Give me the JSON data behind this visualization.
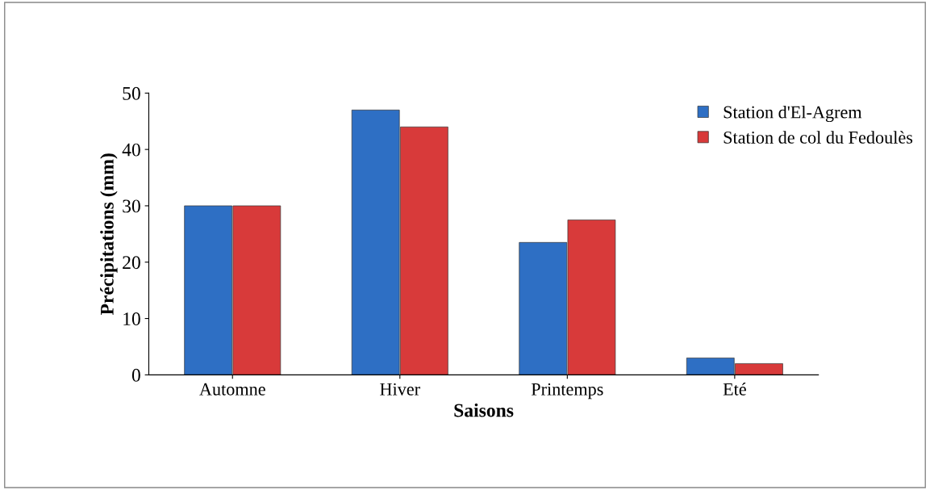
{
  "chart_data": {
    "type": "bar",
    "xlabel": "Saisons",
    "ylabel": "Précipitations (mm)",
    "categories": [
      "Automne",
      "Hiver",
      "Printemps",
      "Eté"
    ],
    "series": [
      {
        "name": "Station d'El-Agrem",
        "color": "#2e6fc4",
        "values": [
          30,
          47,
          23.5,
          3
        ]
      },
      {
        "name": "Station de col du Fedoulès",
        "color": "#d83a3a",
        "values": [
          30,
          44,
          27.5,
          2
        ]
      }
    ],
    "ylim": [
      0,
      50
    ],
    "yticks": [
      0,
      10,
      20,
      30,
      40,
      50
    ],
    "grid": false,
    "legend": "top right"
  }
}
